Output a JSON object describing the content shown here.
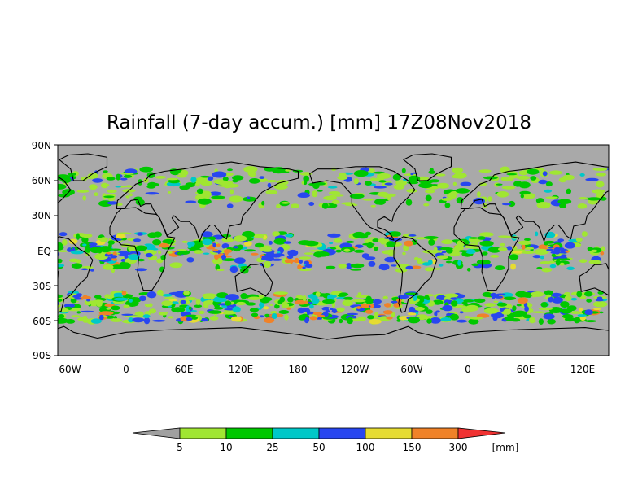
{
  "map": {
    "title": "Rainfall (7-day accum.) [mm] 17Z08Nov2018",
    "lat_labels": [
      "90N",
      "60N",
      "30N",
      "EQ",
      "30S",
      "60S",
      "90S"
    ],
    "lon_labels": [
      "60W",
      "0",
      "60E",
      "120E",
      "180",
      "120W",
      "60W",
      "0",
      "60E",
      "120E"
    ],
    "land_color": "#a6a6a6",
    "ocean_color": "#b4b4b4"
  },
  "legend": {
    "ticks": [
      "5",
      "10",
      "25",
      "50",
      "100",
      "150",
      "300"
    ],
    "unit": "[mm]",
    "colors": {
      "below": "#a0a0a0",
      "c1": "#a0e632",
      "c2": "#00c800",
      "c3": "#00c8c8",
      "c4": "#2846f0",
      "c5": "#e6dc32",
      "c6": "#f08228",
      "above": "#f03232"
    }
  }
}
